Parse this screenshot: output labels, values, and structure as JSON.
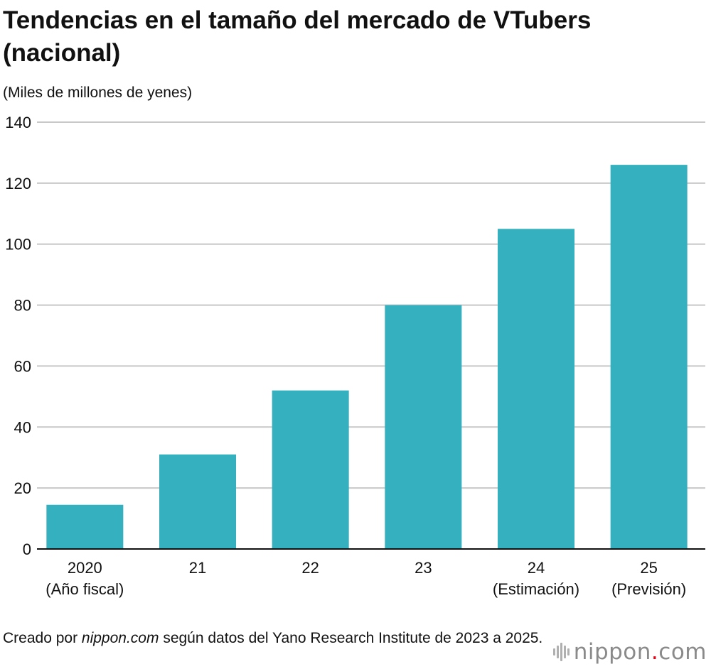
{
  "title": "Tendencias en el tamaño del mercado de VTubers (nacional)",
  "unit_label": "(Miles de millones de yenes)",
  "source": {
    "prefix": "Creado por ",
    "brand": "nippon.com",
    "suffix": " según datos del Yano Research Institute de 2023 a 2025."
  },
  "logo": {
    "name": "nippon",
    "dot": ".",
    "tld": "com",
    "icon": "nippon-logo-icon"
  },
  "colors": {
    "bar": "#35b0bf",
    "grid": "#c8c8c8",
    "axis": "#111111",
    "logo_dot": "#e60012"
  },
  "chart_data": {
    "type": "bar",
    "title": "Tendencias en el tamaño del mercado de VTubers (nacional)",
    "xlabel": "",
    "ylabel": "(Miles de millones de yenes)",
    "ylim": [
      0,
      140
    ],
    "yticks": [
      0,
      20,
      40,
      60,
      80,
      100,
      120,
      140
    ],
    "grid": true,
    "categories": [
      [
        "2020",
        "(Año fiscal)"
      ],
      [
        "21"
      ],
      [
        "22"
      ],
      [
        "23"
      ],
      [
        "24",
        "(Estimación)"
      ],
      [
        "25",
        "(Previsión)"
      ]
    ],
    "values": [
      14.5,
      31,
      52,
      80,
      105,
      126
    ]
  }
}
